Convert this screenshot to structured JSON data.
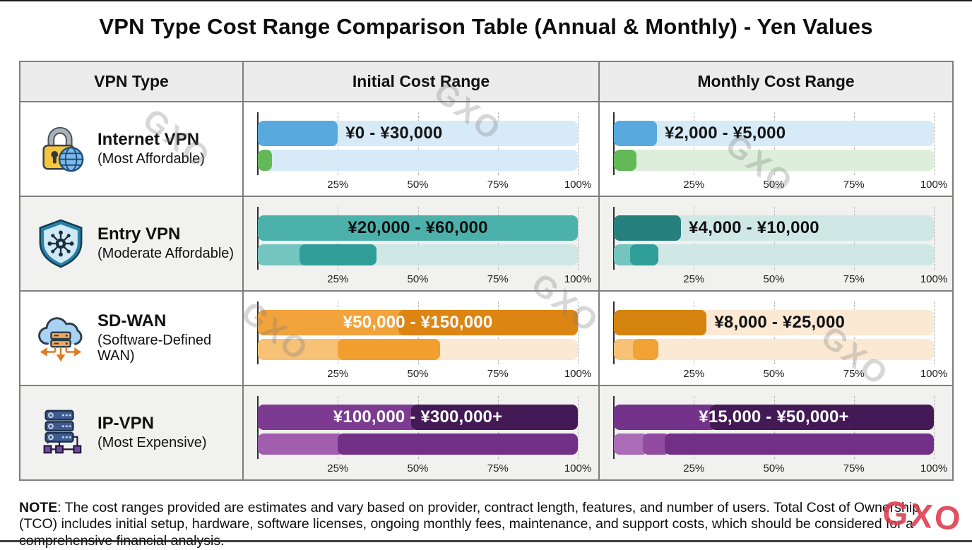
{
  "title": "VPN Type Cost Range Comparison Table (Annual & Monthly) - Yen Values",
  "watermark": {
    "text": "GXO",
    "gray_color": "#7d7d7d",
    "red_color": "#dd3a4d"
  },
  "note": {
    "prefix": "NOTE",
    "body": ": The cost ranges provided are estimates and vary based on provider, contract length, features, and number of users. Total Cost of Ownership (TCO) includes initial setup, hardware, software licenses, ongoing monthly fees, maintenance, and support costs, which should be considered for a comprehensive financial analysis."
  },
  "table": {
    "headers": [
      "VPN Type",
      "Initial Cost Range",
      "Monthly Cost Range"
    ],
    "axis_ticks": [
      "25%",
      "50%",
      "75%",
      "100%"
    ],
    "rows": [
      {
        "name": "Internet VPN",
        "subtitle": "(Most Affordable)",
        "icon": "lock-globe-icon",
        "initial": {
          "label": "¥0 - ¥30,000",
          "label_color": "#141414",
          "label_align": "after",
          "label_anchor": 25,
          "bars": [
            {
              "track": "#d7eaf8",
              "segments": [
                {
                  "start": 0,
                  "end": 25,
                  "color": "#57a9de"
                }
              ]
            },
            {
              "track": "#d7eaf8",
              "segments": [
                {
                  "start": 0,
                  "end": 4.5,
                  "color": "#63b957"
                }
              ]
            }
          ]
        },
        "monthly": {
          "label": "¥2,000 - ¥5,000",
          "label_color": "#141414",
          "label_align": "after",
          "label_anchor": 13.5,
          "bars": [
            {
              "track": "#d7eaf8",
              "segments": [
                {
                  "start": 0,
                  "end": 13.5,
                  "color": "#57a9de"
                }
              ]
            },
            {
              "track": "#ddeeda",
              "segments": [
                {
                  "start": 0,
                  "end": 7,
                  "color": "#63b957"
                }
              ]
            }
          ]
        }
      },
      {
        "name": "Entry VPN",
        "subtitle": "(Moderate Affordable)",
        "icon": "shield-network-icon",
        "initial": {
          "label": "¥20,000 - ¥60,000",
          "label_color": "#101010",
          "label_align": "center",
          "label_anchor": 50,
          "bars": [
            {
              "track": "#cfe8e6",
              "segments": [
                {
                  "start": 0,
                  "end": 100,
                  "color": "#4db1ab"
                }
              ]
            },
            {
              "track": "#cfe8e6",
              "segments": [
                {
                  "start": 0,
                  "end": 16,
                  "color": "#74c4bf"
                },
                {
                  "start": 13,
                  "end": 37,
                  "color": "#2f9e99"
                }
              ]
            }
          ]
        },
        "monthly": {
          "label": "¥4,000 - ¥10,000",
          "label_color": "#101010",
          "label_align": "after",
          "label_anchor": 21,
          "bars": [
            {
              "track": "#cfe8e6",
              "segments": [
                {
                  "start": 0,
                  "end": 21,
                  "color": "#26807d"
                }
              ]
            },
            {
              "track": "#cfe8e6",
              "segments": [
                {
                  "start": 0,
                  "end": 8,
                  "color": "#74c4bf"
                },
                {
                  "start": 5,
                  "end": 14,
                  "color": "#2f9e99"
                }
              ]
            }
          ]
        }
      },
      {
        "name": "SD-WAN",
        "subtitle": "(Software-Defined WAN)",
        "icon": "cloud-wan-icon",
        "initial": {
          "label": "¥50,000 - ¥150,000",
          "label_color": "#ffffff",
          "label_align": "center",
          "label_anchor": 50,
          "bars": [
            {
              "track": "#fbe9d4",
              "segments": [
                {
                  "start": 0,
                  "end": 47,
                  "color": "#f2a33c"
                },
                {
                  "start": 44,
                  "end": 100,
                  "color": "#dd8513"
                }
              ]
            },
            {
              "track": "#fbe9d4",
              "segments": [
                {
                  "start": 0,
                  "end": 28,
                  "color": "#f7c176"
                },
                {
                  "start": 25,
                  "end": 57,
                  "color": "#f29f2f"
                }
              ]
            }
          ]
        },
        "monthly": {
          "label": "¥8,000 - ¥25,000",
          "label_color": "#101010",
          "label_align": "after",
          "label_anchor": 29,
          "bars": [
            {
              "track": "#fbe9d4",
              "segments": [
                {
                  "start": 0,
                  "end": 29,
                  "color": "#d5830f"
                }
              ]
            },
            {
              "track": "#fbe9d4",
              "segments": [
                {
                  "start": 0,
                  "end": 8,
                  "color": "#f7c176"
                },
                {
                  "start": 6,
                  "end": 14,
                  "color": "#f2a233"
                }
              ]
            }
          ]
        }
      },
      {
        "name": "IP-VPN",
        "subtitle": "(Most Expensive)",
        "icon": "server-stack-icon",
        "initial": {
          "label": "¥100,000 - ¥300,000+",
          "label_color": "#ffffff",
          "label_align": "center",
          "label_anchor": 50,
          "bars": [
            {
              "track": "#e9dced",
              "segments": [
                {
                  "start": 0,
                  "end": 50,
                  "color": "#7c3b90"
                },
                {
                  "start": 48,
                  "end": 100,
                  "color": "#431a55"
                }
              ]
            },
            {
              "track": "#e9dced",
              "segments": [
                {
                  "start": 0,
                  "end": 27,
                  "color": "#a15dae"
                },
                {
                  "start": 25,
                  "end": 100,
                  "color": "#712f86"
                }
              ]
            }
          ]
        },
        "monthly": {
          "label": "¥15,000 - ¥50,000+",
          "label_color": "#ffffff",
          "label_align": "center",
          "label_anchor": 50,
          "bars": [
            {
              "track": "#e9dced",
              "segments": [
                {
                  "start": 0,
                  "end": 32,
                  "color": "#74338a"
                },
                {
                  "start": 30,
                  "end": 100,
                  "color": "#431a55"
                }
              ]
            },
            {
              "track": "#e9dced",
              "segments": [
                {
                  "start": 0,
                  "end": 10.5,
                  "color": "#ab6cb8"
                },
                {
                  "start": 9,
                  "end": 17.5,
                  "color": "#914b9f"
                },
                {
                  "start": 16,
                  "end": 100,
                  "color": "#712f86"
                }
              ]
            }
          ]
        }
      }
    ]
  },
  "chart_data": [
    {
      "type": "bar",
      "title": "Initial Cost Range",
      "categories": [
        "Internet VPN",
        "Entry VPN",
        "SD-WAN",
        "IP-VPN"
      ],
      "labels": [
        "¥0 - ¥30,000",
        "¥20,000 - ¥60,000",
        "¥50,000 - ¥150,000",
        "¥100,000 - ¥300,000+"
      ],
      "ranges_yen": [
        [
          0,
          30000
        ],
        [
          20000,
          60000
        ],
        [
          50000,
          150000
        ],
        [
          100000,
          300000
        ]
      ],
      "open_ended": [
        false,
        false,
        false,
        true
      ],
      "xlabel": "",
      "ylabel": "",
      "x_ticks": [
        "25%",
        "50%",
        "75%",
        "100%"
      ],
      "xlim": [
        0,
        100
      ],
      "grid": "dashed-vertical",
      "legend": "none"
    },
    {
      "type": "bar",
      "title": "Monthly Cost Range",
      "categories": [
        "Internet VPN",
        "Entry VPN",
        "SD-WAN",
        "IP-VPN"
      ],
      "labels": [
        "¥2,000 - ¥5,000",
        "¥4,000 - ¥10,000",
        "¥8,000 - ¥25,000",
        "¥15,000 - ¥50,000+"
      ],
      "ranges_yen": [
        [
          2000,
          5000
        ],
        [
          4000,
          10000
        ],
        [
          8000,
          25000
        ],
        [
          15000,
          50000
        ]
      ],
      "open_ended": [
        false,
        false,
        false,
        true
      ],
      "xlabel": "",
      "ylabel": "",
      "x_ticks": [
        "25%",
        "50%",
        "75%",
        "100%"
      ],
      "xlim": [
        0,
        100
      ],
      "grid": "dashed-vertical",
      "legend": "none"
    }
  ]
}
